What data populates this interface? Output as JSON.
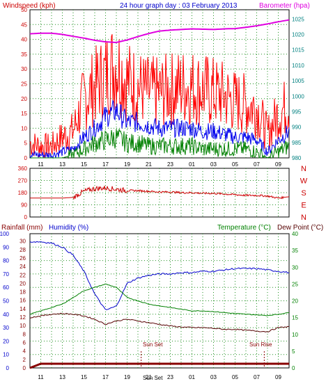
{
  "colors": {
    "wind_avg": "#0000ee",
    "wind_gust": "#ff0000",
    "wind_low": "#008000",
    "barometer": "#e000e0",
    "direction": "#cc0000",
    "humidity": "#0000cc",
    "temperature": "#008000",
    "dew_point": "#550000",
    "rain": "#880000",
    "grid": "#1f8f1f",
    "left_scale": "#cc0000",
    "left_scale_bottom": "#0000cc",
    "right_scale": "#008080",
    "right_scale_bottom": "#008000",
    "title": "#0000cc"
  },
  "chart_data": [
    {
      "type": "line",
      "panel": "wind-barometer",
      "title": "24 hour graph day : 03 February 2013",
      "left_label": "Windspeed (kph)",
      "right_label": "Barometer (hpa)",
      "x_ticks": [
        "11",
        "13",
        "15",
        "17",
        "19",
        "21",
        "23",
        "01",
        "03",
        "05",
        "07",
        "09"
      ],
      "left_ticks": [
        "0",
        "5",
        "10",
        "15",
        "20",
        "25",
        "30",
        "35",
        "40",
        "45",
        "50"
      ],
      "right_ticks": [
        "980",
        "985",
        "990",
        "995",
        "1000",
        "1005",
        "1010",
        "1015",
        "1020",
        "1025"
      ],
      "ylim_left": [
        0,
        50
      ],
      "ylim_right": [
        980,
        1028
      ],
      "x_hours_since_start": [
        0,
        1,
        2,
        3,
        4,
        5,
        6,
        7,
        8,
        9,
        10,
        11,
        12,
        13,
        14,
        15,
        16,
        17,
        18,
        19,
        20,
        21,
        22,
        23,
        24
      ],
      "series": [
        {
          "name": "gust",
          "values": [
            5,
            4,
            4,
            7,
            9,
            20,
            24,
            28,
            32,
            26,
            24,
            22,
            22,
            23,
            24,
            24,
            23,
            22,
            21,
            19,
            18,
            17,
            8,
            15,
            18
          ]
        },
        {
          "name": "average",
          "values": [
            1,
            1,
            1,
            2,
            3,
            7,
            10,
            14,
            16,
            12,
            12,
            11,
            10,
            10,
            10,
            10,
            9,
            9,
            8,
            7,
            7,
            6,
            2,
            6,
            9
          ]
        },
        {
          "name": "low",
          "values": [
            0,
            0,
            0,
            0,
            1,
            3,
            5,
            6,
            7,
            5,
            5,
            4,
            4,
            4,
            4,
            4,
            3,
            3,
            3,
            3,
            3,
            2,
            0,
            2,
            4
          ]
        },
        {
          "name": "barometer",
          "values": [
            1020.2,
            1020.4,
            1020.4,
            1020.0,
            1019.4,
            1018.8,
            1018.1,
            1017.6,
            1017.4,
            1018.2,
            1019.3,
            1020.3,
            1021.1,
            1021.4,
            1021.6,
            1021.8,
            1021.7,
            1021.6,
            1021.8,
            1021.9,
            1022.3,
            1022.8,
            1023.4,
            1024.1,
            1024.7
          ]
        }
      ]
    },
    {
      "type": "line",
      "panel": "wind-direction",
      "left_ticks": [
        "0",
        "90",
        "180",
        "270",
        "360"
      ],
      "right_ticks": [
        "N",
        "E",
        "S",
        "W",
        "N"
      ],
      "ylim": [
        0,
        360
      ],
      "x_hours_since_start": [
        0,
        1,
        2,
        3,
        4,
        5,
        6,
        7,
        8,
        9,
        10,
        11,
        12,
        13,
        14,
        15,
        16,
        17,
        18,
        19,
        20,
        21,
        22,
        23,
        24
      ],
      "series": [
        {
          "name": "direction",
          "values": [
            140,
            140,
            140,
            140,
            145,
            190,
            210,
            215,
            205,
            195,
            195,
            190,
            185,
            185,
            180,
            180,
            175,
            175,
            170,
            165,
            160,
            160,
            155,
            140,
            150
          ]
        }
      ]
    },
    {
      "type": "line",
      "panel": "temperature-humidity-rain",
      "left_label_1": "Rainfall (mm)",
      "left_label_2": "Humidity (%)",
      "right_label_1": "Temperature (°C)",
      "right_label_2": "Dew Point (°C)",
      "x_ticks": [
        "11",
        "13",
        "15",
        "17",
        "19",
        "21",
        "23",
        "01",
        "03",
        "05",
        "07",
        "09"
      ],
      "humidity_ticks": [
        "0",
        "10",
        "20",
        "30",
        "40",
        "50",
        "60",
        "70",
        "80",
        "90",
        "100"
      ],
      "rain_ticks": [
        "0",
        "2",
        "4",
        "6",
        "8",
        "10",
        "12",
        "14",
        "16",
        "18",
        "20",
        "22",
        "24",
        "26",
        "28",
        "30"
      ],
      "temp_ticks": [
        "0",
        "5",
        "10",
        "15",
        "20",
        "25",
        "30",
        "35",
        "40"
      ],
      "ylim_humidity": [
        0,
        100
      ],
      "ylim_temp": [
        0,
        40
      ],
      "annotations": [
        {
          "text": "Sun Set",
          "hour_since_start": 10.3
        },
        {
          "text": "Sun Rise",
          "hour_since_start": 21.7
        }
      ],
      "bottom_marker": "Sun Set",
      "x_hours_since_start": [
        0,
        1,
        2,
        3,
        4,
        5,
        6,
        7,
        8,
        9,
        10,
        11,
        12,
        13,
        14,
        15,
        16,
        17,
        18,
        19,
        20,
        21,
        22,
        23,
        24
      ],
      "series": [
        {
          "name": "humidity",
          "values": [
            94,
            94,
            93,
            90,
            84,
            72,
            55,
            43,
            46,
            63,
            67,
            69,
            70,
            70,
            71,
            71,
            72,
            72,
            73,
            74,
            74,
            74,
            73,
            72,
            71
          ]
        },
        {
          "name": "temperature",
          "values": [
            16,
            17,
            18,
            19,
            21,
            23,
            24,
            25,
            24,
            21,
            20,
            19,
            18.5,
            18,
            17.5,
            17,
            17,
            16.8,
            16.5,
            16.2,
            16,
            15.8,
            15.6,
            16,
            16.5
          ]
        },
        {
          "name": "dew_point",
          "values": [
            15,
            15.5,
            16,
            16.2,
            16,
            15.5,
            14.5,
            13,
            14,
            14.5,
            14,
            13.5,
            13,
            12.5,
            12.2,
            12,
            12,
            11.8,
            11.5,
            11.5,
            11.2,
            11,
            10.8,
            12,
            12.3
          ]
        },
        {
          "name": "rainfall",
          "values": [
            0,
            1,
            1,
            1,
            1,
            1,
            1,
            1,
            1,
            1,
            1,
            1,
            1,
            1,
            1,
            1,
            1,
            1,
            1,
            1,
            1,
            1,
            1,
            1,
            1
          ]
        }
      ]
    }
  ]
}
